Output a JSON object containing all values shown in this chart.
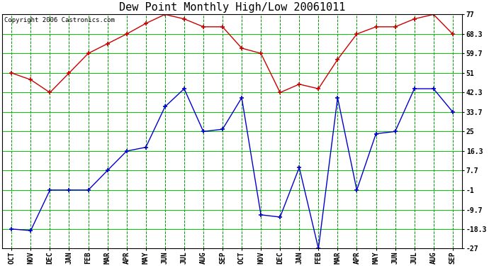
{
  "title": "Dew Point Monthly High/Low 20061011",
  "copyright": "Copyright 2006 Castronics.com",
  "x_labels": [
    "OCT",
    "NOV",
    "DEC",
    "JAN",
    "FEB",
    "MAR",
    "APR",
    "MAY",
    "JUN",
    "JUL",
    "AUG",
    "SEP",
    "OCT",
    "NOV",
    "DEC",
    "JAN",
    "FEB",
    "MAR",
    "APR",
    "MAY",
    "JUN",
    "JUL",
    "AUG",
    "SEP"
  ],
  "high_values": [
    51.0,
    48.0,
    42.3,
    51.0,
    59.7,
    64.0,
    68.3,
    73.0,
    77.0,
    75.0,
    71.5,
    71.5,
    62.0,
    59.7,
    42.3,
    46.0,
    44.0,
    57.0,
    68.3,
    71.5,
    71.5,
    75.0,
    77.0,
    68.3
  ],
  "low_values": [
    -18.3,
    -19.0,
    -1.0,
    -1.0,
    -1.0,
    7.7,
    16.3,
    18.0,
    36.0,
    44.0,
    25.0,
    26.0,
    40.0,
    -12.0,
    -13.0,
    9.0,
    -27.0,
    40.0,
    -1.0,
    24.0,
    25.0,
    44.0,
    44.0,
    33.7
  ],
  "yticks": [
    77.0,
    68.3,
    59.7,
    51.0,
    42.3,
    33.7,
    25.0,
    16.3,
    7.7,
    -1.0,
    -9.7,
    -18.3,
    -27.0
  ],
  "ylim": [
    -27.0,
    77.0
  ],
  "bg_color": "#ffffff",
  "plot_bg": "#ffffff",
  "grid_solid_color": "#00cc00",
  "grid_dash_color": "#009900",
  "high_color": "#cc0000",
  "low_color": "#0000cc",
  "border_color": "#000000",
  "title_fontsize": 11,
  "copyright_fontsize": 6.5,
  "tick_fontsize": 7
}
